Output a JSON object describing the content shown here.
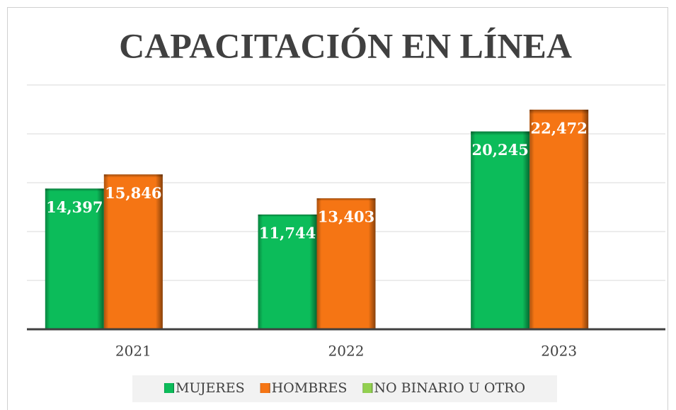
{
  "chart_data": {
    "type": "bar",
    "title": "CAPACITACIÓN EN LÍNEA",
    "categories": [
      "2021",
      "2022",
      "2023"
    ],
    "series": [
      {
        "name": "MUJERES",
        "color": "#0cbc5a",
        "values": [
          14397,
          11744,
          20245
        ],
        "value_labels": [
          "14,397",
          "11,744",
          "20,245"
        ]
      },
      {
        "name": "HOMBRES",
        "color": "#f57514",
        "values": [
          15846,
          13403,
          22472
        ],
        "value_labels": [
          "15,846",
          "13,403",
          "22,472"
        ]
      },
      {
        "name": "NO BINARIO U OTRO",
        "color": "#92d050",
        "values": [
          null,
          null,
          null
        ]
      }
    ],
    "ylim": [
      0,
      25000
    ],
    "yticks": [
      0,
      5000,
      10000,
      15000,
      20000,
      25000
    ],
    "show_ytick_labels": false,
    "grid": true,
    "legend": "bottom"
  }
}
